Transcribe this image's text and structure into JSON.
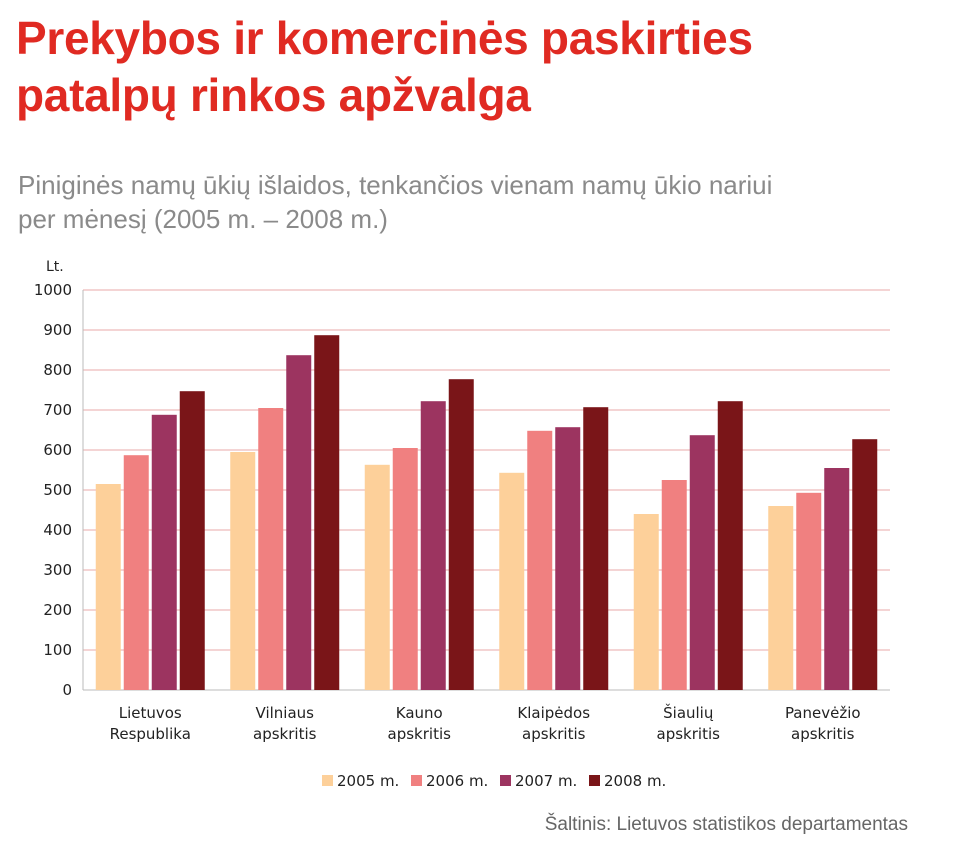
{
  "header": {
    "title_line1": "Prekybos ir komercinės paskirties",
    "title_line2": "patalpų rinkos apžvalga",
    "subtitle_line1": "Piniginės namų ūkių išlaidos, tenkančios vienam namų ūkio nariui",
    "subtitle_line2": "per mėnesį (2005 m. – 2008 m.)"
  },
  "source": "Šaltinis: Lietuvos statistikos departamentas",
  "colors": {
    "title": "#e02a22",
    "grid": "#e8aaa8",
    "series": [
      "#fdd09a",
      "#f08080",
      "#9c3460",
      "#7a1518"
    ]
  },
  "chart_data": {
    "type": "bar",
    "title": "",
    "ylabel": "Lt.",
    "xlabel": "",
    "ylim": [
      0,
      1000
    ],
    "yticks": [
      0,
      100,
      200,
      300,
      400,
      500,
      600,
      700,
      800,
      900,
      1000
    ],
    "grid": true,
    "legend_position": "bottom",
    "categories": [
      [
        "Lietuvos",
        "Respublika"
      ],
      [
        "Vilniaus",
        "apskritis"
      ],
      [
        "Kauno",
        "apskritis"
      ],
      [
        "Klaipėdos",
        "apskritis"
      ],
      [
        "Šiaulių",
        "apskritis"
      ],
      [
        "Panevėžio",
        "apskritis"
      ]
    ],
    "series": [
      {
        "name": "2005 m.",
        "values": [
          515,
          595,
          563,
          543,
          440,
          460
        ]
      },
      {
        "name": "2006 m.",
        "values": [
          587,
          705,
          605,
          648,
          525,
          493
        ]
      },
      {
        "name": "2007 m.",
        "values": [
          688,
          837,
          722,
          657,
          637,
          555
        ]
      },
      {
        "name": "2008 m.",
        "values": [
          747,
          887,
          777,
          707,
          722,
          627
        ]
      }
    ]
  }
}
